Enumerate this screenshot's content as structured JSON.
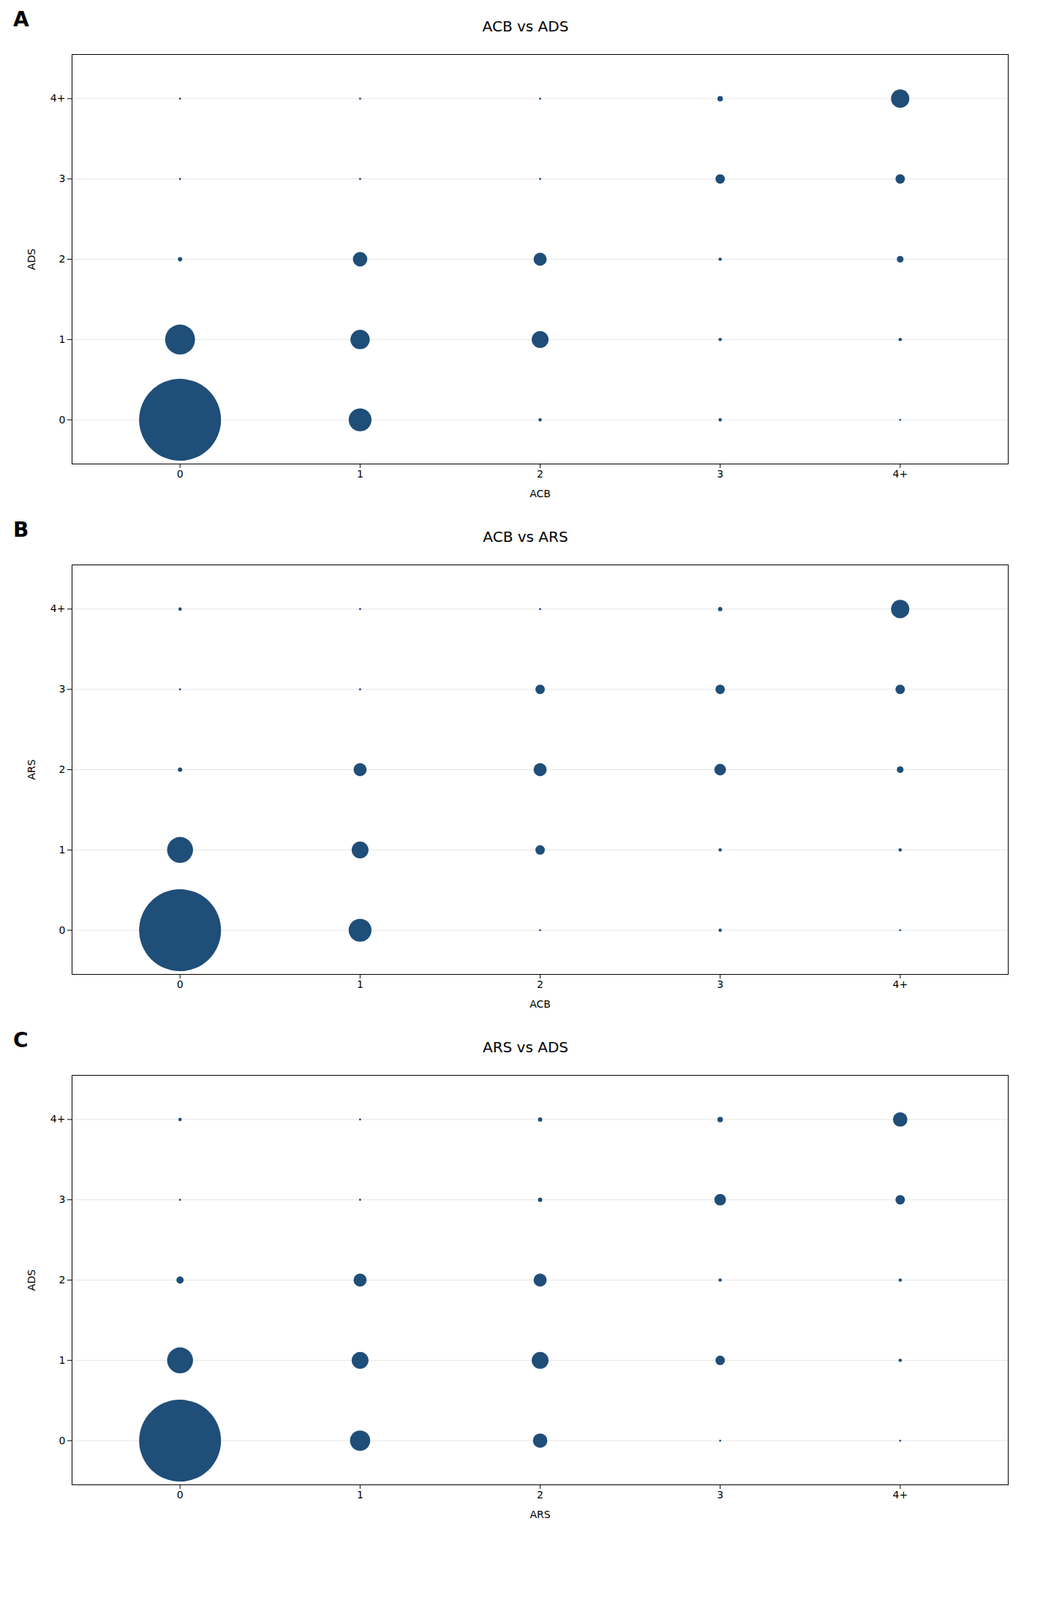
{
  "chart_data": [
    {
      "type": "scatter",
      "title": "ACB vs ADS",
      "annotations": [
        "A"
      ],
      "xlabel": "ACB",
      "ylabel": "ADS",
      "color": "#1f4e79",
      "grid": "y",
      "xlim": [
        -0.6,
        4.6
      ],
      "ylim": [
        -0.55,
        4.55
      ],
      "xticks": [
        0,
        1,
        2,
        3,
        {
          "value": 4,
          "label": "4+"
        }
      ],
      "yticks": [
        0,
        1,
        2,
        3,
        {
          "value": 4,
          "label": "4+"
        }
      ],
      "x": [
        0,
        0,
        0,
        0,
        0,
        1,
        1,
        1,
        1,
        1,
        2,
        2,
        2,
        2,
        2,
        3,
        3,
        3,
        3,
        3,
        4,
        4,
        4,
        4,
        4
      ],
      "values": [
        0,
        1,
        2,
        3,
        4,
        0,
        1,
        2,
        3,
        4,
        0,
        1,
        2,
        3,
        4,
        0,
        1,
        2,
        3,
        4,
        0,
        1,
        2,
        3,
        4
      ],
      "sizes": [
        9000,
        1200,
        25,
        6,
        6,
        700,
        500,
        280,
        6,
        6,
        15,
        380,
        230,
        6,
        6,
        15,
        15,
        15,
        120,
        40,
        6,
        15,
        60,
        120,
        450
      ]
    },
    {
      "type": "scatter",
      "title": "ACB vs ARS",
      "annotations": [
        "B"
      ],
      "xlabel": "ACB",
      "ylabel": "ARS",
      "color": "#1f4e79",
      "grid": "y",
      "xlim": [
        -0.6,
        4.6
      ],
      "ylim": [
        -0.55,
        4.55
      ],
      "xticks": [
        0,
        1,
        2,
        3,
        {
          "value": 4,
          "label": "4+"
        }
      ],
      "yticks": [
        0,
        1,
        2,
        3,
        {
          "value": 4,
          "label": "4+"
        }
      ],
      "x": [
        0,
        0,
        0,
        0,
        0,
        1,
        1,
        1,
        1,
        1,
        2,
        2,
        2,
        2,
        2,
        3,
        3,
        3,
        3,
        3,
        4,
        4,
        4,
        4,
        4
      ],
      "values": [
        0,
        1,
        2,
        3,
        4,
        0,
        1,
        2,
        3,
        4,
        0,
        1,
        2,
        3,
        4,
        0,
        1,
        2,
        3,
        4,
        0,
        1,
        2,
        3,
        4
      ],
      "sizes": [
        9000,
        900,
        25,
        6,
        15,
        700,
        380,
        230,
        6,
        6,
        6,
        120,
        230,
        120,
        6,
        15,
        15,
        180,
        120,
        25,
        6,
        15,
        60,
        120,
        450
      ]
    },
    {
      "type": "scatter",
      "title": "ARS vs ADS",
      "annotations": [
        "C"
      ],
      "xlabel": "ARS",
      "ylabel": "ADS",
      "color": "#1f4e79",
      "grid": "y",
      "xlim": [
        -0.6,
        4.6
      ],
      "ylim": [
        -0.55,
        4.55
      ],
      "xticks": [
        0,
        1,
        2,
        3,
        {
          "value": 4,
          "label": "4+"
        }
      ],
      "yticks": [
        0,
        1,
        2,
        3,
        {
          "value": 4,
          "label": "4+"
        }
      ],
      "x": [
        0,
        0,
        0,
        0,
        0,
        1,
        1,
        1,
        1,
        1,
        2,
        2,
        2,
        2,
        2,
        3,
        3,
        3,
        3,
        3,
        4,
        4,
        4,
        4,
        4
      ],
      "values": [
        0,
        1,
        2,
        3,
        4,
        0,
        1,
        2,
        3,
        4,
        0,
        1,
        2,
        3,
        4,
        0,
        1,
        2,
        3,
        4,
        0,
        1,
        2,
        3,
        4
      ],
      "sizes": [
        9000,
        900,
        70,
        6,
        15,
        550,
        380,
        230,
        6,
        6,
        280,
        380,
        230,
        25,
        25,
        6,
        120,
        15,
        180,
        40,
        6,
        15,
        15,
        120,
        280
      ]
    }
  ]
}
